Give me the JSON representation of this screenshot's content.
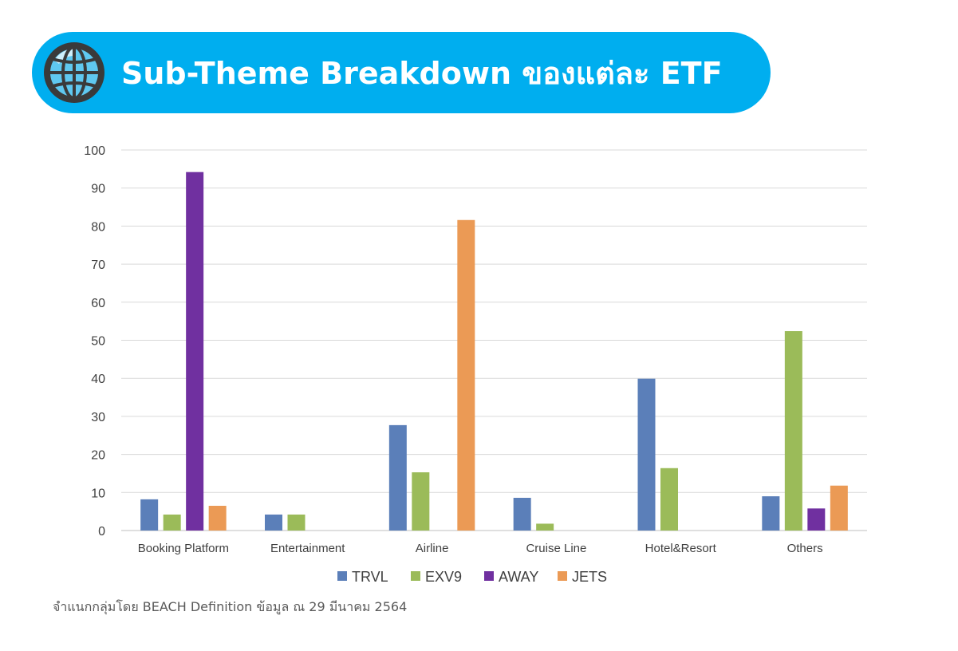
{
  "header": {
    "title": "Sub-Theme Breakdown ของแต่ละ ETF",
    "icon": "globe-icon"
  },
  "chart_data": {
    "type": "bar",
    "categories": [
      "Booking Platform",
      "Entertainment",
      "Airline",
      "Cruise Line",
      "Hotel&Resort",
      "Others"
    ],
    "series": [
      {
        "name": "TRVL",
        "color": "#5b7fb9",
        "values": [
          8.2,
          4.2,
          27.7,
          8.6,
          39.9,
          9.0
        ]
      },
      {
        "name": "EXV9",
        "color": "#9bbb59",
        "values": [
          4.2,
          4.2,
          15.3,
          1.8,
          16.4,
          52.4
        ]
      },
      {
        "name": "AWAY",
        "color": "#7030a0",
        "values": [
          94.2,
          null,
          null,
          null,
          null,
          5.8
        ]
      },
      {
        "name": "JETS",
        "color": "#eb9a55",
        "values": [
          6.5,
          null,
          81.6,
          null,
          null,
          11.8
        ]
      }
    ],
    "ylim": [
      0,
      100
    ],
    "yticks": [
      0,
      10,
      20,
      30,
      40,
      50,
      60,
      70,
      80,
      90,
      100
    ],
    "grid": true,
    "legend": "bottom",
    "xlabel": "",
    "ylabel": ""
  },
  "footnote": "จำแนกกลุ่มโดย BEACH Definition ข้อมูล ณ 29 มีนาคม 2564"
}
